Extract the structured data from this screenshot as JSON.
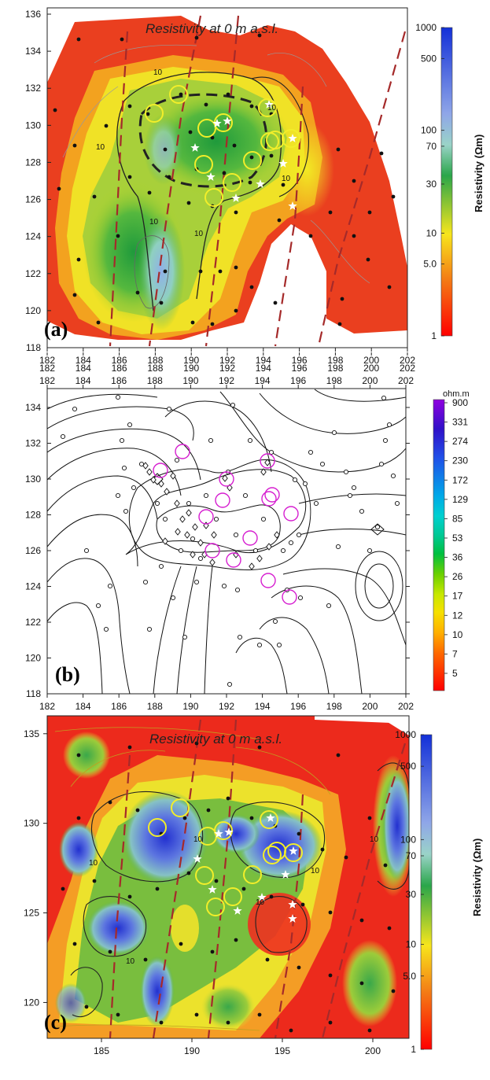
{
  "chart_data": [
    {
      "type": "heatmap",
      "panel_label": "(a)",
      "title": "Resistivity at 0 m a.s.l.",
      "x_ticks": [
        "182",
        "184",
        "186",
        "188",
        "190",
        "192",
        "194",
        "196",
        "198",
        "200",
        "202"
      ],
      "x_ticks_top": [
        "182",
        "184",
        "186",
        "188",
        "190",
        "192",
        "194",
        "196",
        "198",
        "200",
        "202"
      ],
      "y_ticks": [
        "118",
        "120",
        "122",
        "124",
        "126",
        "128",
        "130",
        "132",
        "134",
        "136"
      ],
      "xlim": [
        182,
        202
      ],
      "ylim": [
        118,
        136
      ],
      "colorbar_ticks": [
        "1000",
        "500",
        "100",
        "70",
        "30",
        "10",
        "5.0",
        "1"
      ],
      "colorbar_label": "Resistivity (Ωm)",
      "contour_labels": [
        "10",
        "10",
        "10",
        "10",
        "10",
        "10"
      ],
      "colors": {
        "low": "#e8231a",
        "mid": "#f5e51f",
        "green": "#2fa84a",
        "high": "#1e37d4",
        "fault": "#a52a2a"
      }
    },
    {
      "type": "heatmap",
      "panel_label": "(b)",
      "x_ticks": [
        "182",
        "184",
        "186",
        "188",
        "190",
        "192",
        "194",
        "196",
        "198",
        "200",
        "202"
      ],
      "x_ticks_top": [
        "182",
        "184",
        "186",
        "188",
        "190",
        "192",
        "194",
        "196",
        "198",
        "200",
        "202"
      ],
      "y_ticks": [
        "118",
        "120",
        "122",
        "124",
        "126",
        "128",
        "130",
        "132",
        "134"
      ],
      "xlim": [
        182,
        202
      ],
      "ylim": [
        118,
        135
      ],
      "colorbar_unit": "ohm.m",
      "colorbar_ticks": [
        "900",
        "331",
        "274",
        "230",
        "172",
        "129",
        "85",
        "53",
        "36",
        "26",
        "17",
        "12",
        "10",
        "7",
        "5"
      ],
      "colors": {
        "circle": "#d61fd0"
      }
    },
    {
      "type": "heatmap",
      "panel_label": "(c)",
      "title": "Resistivity at 0 m a.s.l.",
      "x_ticks": [
        "185",
        "190",
        "195",
        "200"
      ],
      "y_ticks": [
        "120",
        "125",
        "130",
        "135"
      ],
      "xlim": [
        182,
        202
      ],
      "ylim": [
        118,
        136
      ],
      "colorbar_ticks": [
        "1000",
        "500",
        "100",
        "70",
        "30",
        "10",
        "5.0",
        "1"
      ],
      "colorbar_label": "Resistivity (Ωm)",
      "contour_labels": [
        "10",
        "10",
        "10",
        "10",
        "10",
        "10"
      ]
    }
  ]
}
